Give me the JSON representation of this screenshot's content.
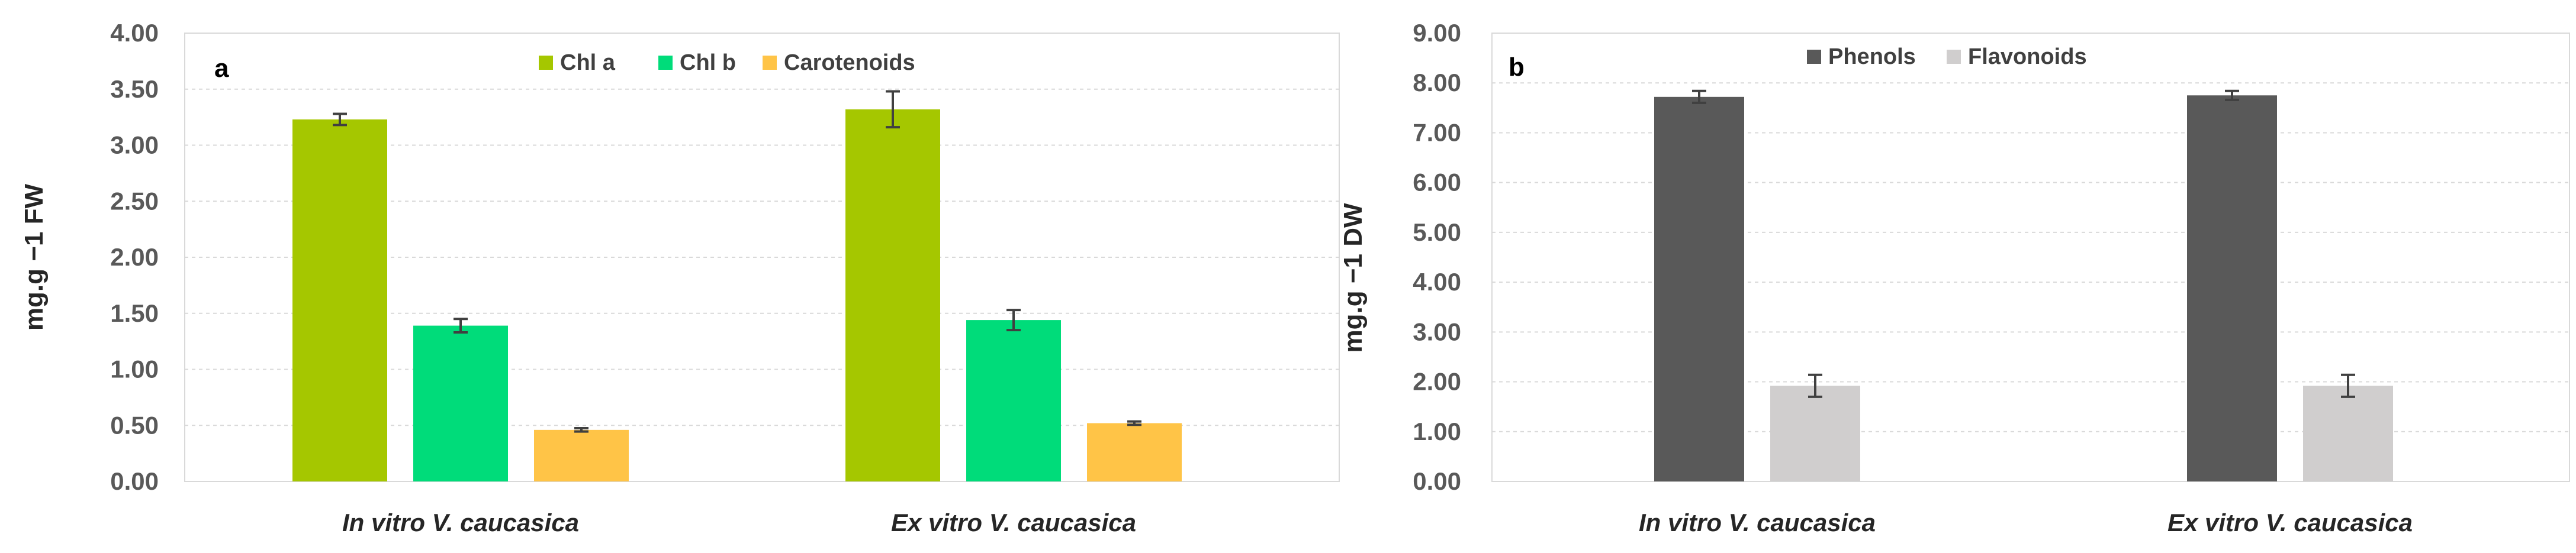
{
  "chart_data": [
    {
      "type": "bar",
      "panel": "a",
      "ylabel": "mg.g −1 FW",
      "ylim": [
        0,
        4
      ],
      "yticks": [
        "0.00",
        "0.50",
        "1.00",
        "1.50",
        "2.00",
        "2.50",
        "3.00",
        "3.50",
        "4.00"
      ],
      "categories": [
        "In vitro V. caucasica",
        "Ex vitro V. caucasica"
      ],
      "series": [
        {
          "name": "Chl a",
          "color": "#a5c700",
          "values": [
            3.23,
            3.32
          ],
          "errors": [
            0.05,
            0.16
          ]
        },
        {
          "name": "Chl b",
          "color": "#00dc7a",
          "values": [
            1.39,
            1.44
          ],
          "errors": [
            0.06,
            0.09
          ]
        },
        {
          "name": "Carotenoids",
          "color": "#ffc447",
          "values": [
            0.46,
            0.52
          ],
          "errors": [
            0.015,
            0.015
          ]
        }
      ],
      "legend": "top-center",
      "grid": true
    },
    {
      "type": "bar",
      "panel": "b",
      "ylabel": "mg.g −1 DW",
      "ylim": [
        0,
        9
      ],
      "yticks": [
        "0.00",
        "1.00",
        "2.00",
        "3.00",
        "4.00",
        "5.00",
        "6.00",
        "7.00",
        "8.00",
        "9.00"
      ],
      "categories": [
        "In vitro V. caucasica",
        "Ex vitro V. caucasica"
      ],
      "series": [
        {
          "name": "Phenols",
          "color": "#595959",
          "values": [
            7.72,
            7.75
          ],
          "errors": [
            0.12,
            0.09
          ]
        },
        {
          "name": "Flavonoids",
          "color": "#d0cece",
          "values": [
            1.92,
            1.92
          ],
          "errors": [
            0.22,
            0.22
          ]
        }
      ],
      "legend": "top-center",
      "grid": true
    }
  ]
}
